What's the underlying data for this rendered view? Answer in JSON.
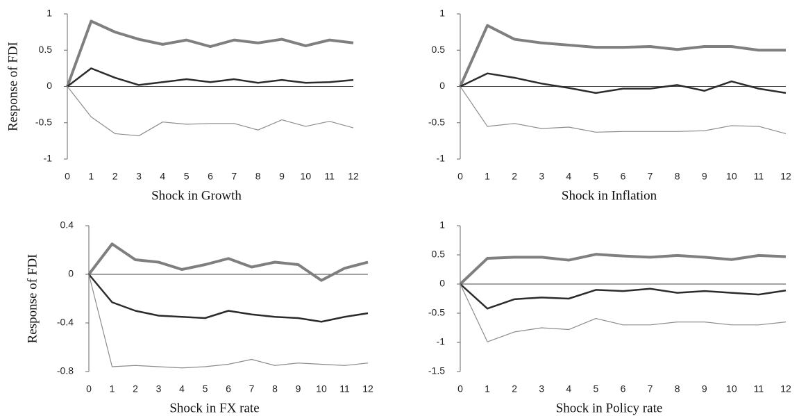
{
  "chart_data": [
    {
      "type": "line",
      "xlabel": "Shock in Growth",
      "ylabel": "Response of FDI",
      "x": [
        0,
        1,
        2,
        3,
        4,
        5,
        6,
        7,
        8,
        9,
        10,
        11,
        12
      ],
      "xlim": [
        0,
        12
      ],
      "xticks": [
        0,
        1,
        2,
        3,
        4,
        5,
        6,
        7,
        8,
        9,
        10,
        11,
        12
      ],
      "ylim": [
        -1,
        1
      ],
      "yticks": [
        -1,
        -0.5,
        0,
        0.5,
        1
      ],
      "series": [
        {
          "color": "#7f7f7f",
          "line_width": 4,
          "values": [
            0,
            0.9,
            0.75,
            0.65,
            0.58,
            0.64,
            0.55,
            0.64,
            0.6,
            0.65,
            0.56,
            0.64,
            0.6
          ]
        },
        {
          "color": "#2b2b2b",
          "line_width": 2.5,
          "values": [
            0,
            0.25,
            0.12,
            0.02,
            0.06,
            0.1,
            0.06,
            0.1,
            0.05,
            0.09,
            0.05,
            0.06,
            0.09
          ]
        },
        {
          "color": "#8c8c8c",
          "line_width": 1.2,
          "values": [
            0,
            -0.42,
            -0.65,
            -0.68,
            -0.49,
            -0.52,
            -0.51,
            -0.51,
            -0.6,
            -0.46,
            -0.55,
            -0.48,
            -0.57
          ]
        }
      ]
    },
    {
      "type": "line",
      "xlabel": "Shock in Inflation",
      "x": [
        0,
        1,
        2,
        3,
        4,
        5,
        6,
        7,
        8,
        9,
        10,
        11,
        12
      ],
      "xlim": [
        0,
        12
      ],
      "xticks": [
        0,
        1,
        2,
        3,
        4,
        5,
        6,
        7,
        8,
        9,
        10,
        11,
        12
      ],
      "ylim": [
        -1,
        1
      ],
      "yticks": [
        -1,
        -0.5,
        0,
        0.5,
        1
      ],
      "series": [
        {
          "color": "#7f7f7f",
          "line_width": 4,
          "values": [
            0,
            0.84,
            0.65,
            0.6,
            0.57,
            0.54,
            0.54,
            0.55,
            0.51,
            0.55,
            0.55,
            0.5,
            0.5
          ]
        },
        {
          "color": "#2b2b2b",
          "line_width": 2.5,
          "values": [
            0,
            0.18,
            0.12,
            0.04,
            -0.02,
            -0.09,
            -0.03,
            -0.03,
            0.02,
            -0.06,
            0.07,
            -0.03,
            -0.09
          ]
        },
        {
          "color": "#8c8c8c",
          "line_width": 1.2,
          "values": [
            0,
            -0.55,
            -0.51,
            -0.58,
            -0.56,
            -0.63,
            -0.62,
            -0.62,
            -0.62,
            -0.61,
            -0.54,
            -0.55,
            -0.65
          ]
        }
      ]
    },
    {
      "type": "line",
      "xlabel": "Shock in FX rate",
      "ylabel": "Response of FDI",
      "x": [
        0,
        1,
        2,
        3,
        4,
        5,
        6,
        7,
        8,
        9,
        10,
        11,
        12
      ],
      "xlim": [
        0,
        12
      ],
      "xticks": [
        0,
        1,
        2,
        3,
        4,
        5,
        6,
        7,
        8,
        9,
        10,
        11,
        12
      ],
      "ylim": [
        -0.8,
        0.4
      ],
      "yticks": [
        -0.8,
        -0.4,
        0,
        0.4
      ],
      "series": [
        {
          "color": "#7f7f7f",
          "line_width": 4,
          "values": [
            0,
            0.25,
            0.12,
            0.1,
            0.04,
            0.08,
            0.13,
            0.06,
            0.1,
            0.08,
            -0.05,
            0.05,
            0.1
          ]
        },
        {
          "color": "#2b2b2b",
          "line_width": 2.5,
          "values": [
            0,
            -0.23,
            -0.3,
            -0.34,
            -0.35,
            -0.36,
            -0.3,
            -0.33,
            -0.35,
            -0.36,
            -0.39,
            -0.35,
            -0.32
          ]
        },
        {
          "color": "#8c8c8c",
          "line_width": 1.2,
          "values": [
            0,
            -0.76,
            -0.75,
            -0.76,
            -0.77,
            -0.76,
            -0.74,
            -0.7,
            -0.75,
            -0.73,
            -0.74,
            -0.75,
            -0.73
          ]
        }
      ]
    },
    {
      "type": "line",
      "xlabel": "Shock in Policy rate",
      "x": [
        0,
        1,
        2,
        3,
        4,
        5,
        6,
        7,
        8,
        9,
        10,
        11,
        12
      ],
      "xlim": [
        0,
        12
      ],
      "xticks": [
        0,
        1,
        2,
        3,
        4,
        5,
        6,
        7,
        8,
        9,
        10,
        11,
        12
      ],
      "ylim": [
        -1.5,
        1
      ],
      "yticks": [
        -1.5,
        -1,
        -0.5,
        0,
        0.5,
        1
      ],
      "series": [
        {
          "color": "#7f7f7f",
          "line_width": 4,
          "values": [
            0,
            0.44,
            0.46,
            0.46,
            0.41,
            0.51,
            0.48,
            0.46,
            0.49,
            0.46,
            0.42,
            0.49,
            0.47
          ]
        },
        {
          "color": "#2b2b2b",
          "line_width": 2.5,
          "values": [
            0,
            -0.42,
            -0.26,
            -0.23,
            -0.25,
            -0.1,
            -0.12,
            -0.08,
            -0.15,
            -0.12,
            -0.15,
            -0.18,
            -0.11
          ]
        },
        {
          "color": "#8c8c8c",
          "line_width": 1.2,
          "values": [
            0,
            -0.99,
            -0.82,
            -0.75,
            -0.78,
            -0.59,
            -0.7,
            -0.7,
            -0.65,
            -0.65,
            -0.7,
            -0.7,
            -0.65
          ]
        }
      ]
    }
  ]
}
